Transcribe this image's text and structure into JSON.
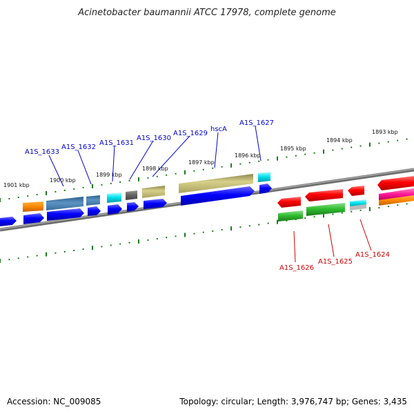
{
  "title": "Acinetobacter baumannii ATCC 17978, complete genome",
  "footer": {
    "accession": "Accession: NC_009085",
    "summary": "Topology: circular; Length: 3,976,747 bp; Genes: 3,435"
  },
  "colors": {
    "backbone": "#808080",
    "tick": "#1a7a1a",
    "label_top": "#0000cc",
    "label_bottom": "#cc0000"
  },
  "kbp_labels": [
    "1901 kbp",
    "1900 kbp",
    "1899 kbp",
    "1898 kbp",
    "1897 kbp",
    "1896 kbp",
    "1895 kbp",
    "1894 kbp",
    "1893 kbp"
  ],
  "top_labels": [
    "A1S_1633",
    "A1S_1632",
    "A1S_1631",
    "A1S_1630",
    "A1S_1629",
    "hscA",
    "A1S_1627"
  ],
  "bottom_labels": [
    "A1S_1626",
    "A1S_1625",
    "A1S_1624"
  ],
  "genes": [
    {
      "color": "#ff8c00",
      "track": "upper-feature"
    },
    {
      "color": "#4682b4",
      "track": "upper-feature"
    },
    {
      "color": "#4682b4",
      "track": "upper-feature"
    },
    {
      "color": "#00e5ee",
      "track": "upper-feature"
    },
    {
      "color": "#666666",
      "track": "upper-feature"
    },
    {
      "color": "#bdb76b",
      "track": "upper-feature"
    },
    {
      "color": "#bdb76b",
      "track": "upper-feature"
    },
    {
      "color": "#00e5ee",
      "track": "upper-feature"
    },
    {
      "color": "#0000ff",
      "track": "upper-cds"
    },
    {
      "color": "#ff0000",
      "track": "lower-cds"
    },
    {
      "color": "#22bb22",
      "track": "lower-feature"
    },
    {
      "color": "#00ccee",
      "track": "lower-feature"
    },
    {
      "color": "#ff1493",
      "track": "lower-feature"
    }
  ]
}
